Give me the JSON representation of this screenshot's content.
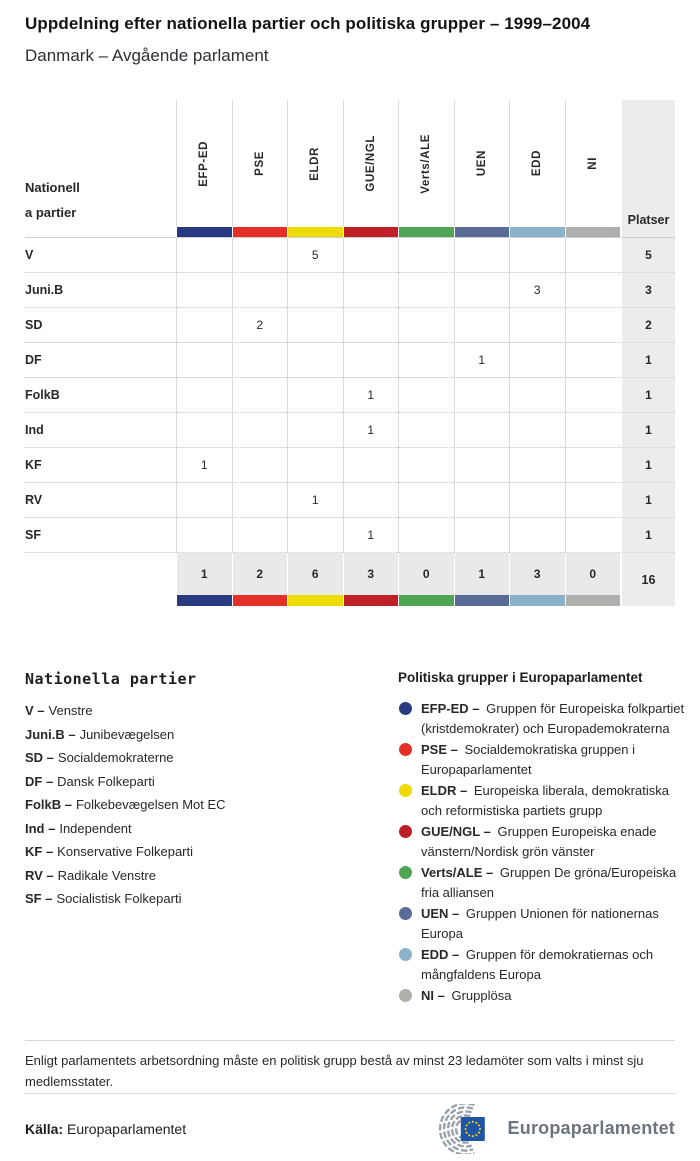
{
  "header": {
    "title": "Uppdelning efter nationella partier och politiska grupper – 1999–2004",
    "subtitle": "Danmark – Avgående parlament"
  },
  "chart_data": {
    "type": "table",
    "title": "Uppdelning efter nationella partier och politiska grupper – 1999–2004",
    "subtitle": "Danmark – Avgående parlament",
    "row_header": {
      "line1": "Nationell",
      "line2": "a partier"
    },
    "seats_column_label": "Platser",
    "groups": [
      {
        "id": "EFP-ED",
        "color": "#293a80"
      },
      {
        "id": "PSE",
        "color": "#e3312a"
      },
      {
        "id": "ELDR",
        "color": "#eedb00"
      },
      {
        "id": "GUE/NGL",
        "color": "#bd2026"
      },
      {
        "id": "Verts/ALE",
        "color": "#50a554"
      },
      {
        "id": "UEN",
        "color": "#5a6b97"
      },
      {
        "id": "EDD",
        "color": "#8bb2ca"
      },
      {
        "id": "NI",
        "color": "#b1afac"
      }
    ],
    "rows": [
      {
        "party": "V",
        "seats": [
          null,
          null,
          5,
          null,
          null,
          null,
          null,
          null
        ],
        "total": 5
      },
      {
        "party": "Juni.B",
        "seats": [
          null,
          null,
          null,
          null,
          null,
          null,
          3,
          null
        ],
        "total": 3
      },
      {
        "party": "SD",
        "seats": [
          null,
          2,
          null,
          null,
          null,
          null,
          null,
          null
        ],
        "total": 2
      },
      {
        "party": "DF",
        "seats": [
          null,
          null,
          null,
          null,
          null,
          1,
          null,
          null
        ],
        "total": 1
      },
      {
        "party": "FolkB",
        "seats": [
          null,
          null,
          null,
          1,
          null,
          null,
          null,
          null
        ],
        "total": 1
      },
      {
        "party": "Ind",
        "seats": [
          null,
          null,
          null,
          1,
          null,
          null,
          null,
          null
        ],
        "total": 1
      },
      {
        "party": "KF",
        "seats": [
          1,
          null,
          null,
          null,
          null,
          null,
          null,
          null
        ],
        "total": 1
      },
      {
        "party": "RV",
        "seats": [
          null,
          null,
          1,
          null,
          null,
          null,
          null,
          null
        ],
        "total": 1
      },
      {
        "party": "SF",
        "seats": [
          null,
          null,
          null,
          1,
          null,
          null,
          null,
          null
        ],
        "total": 1
      }
    ],
    "totals": [
      1,
      2,
      6,
      3,
      0,
      1,
      3,
      0
    ],
    "grand_total": 16
  },
  "legend_national": {
    "heading": "Nationella partier",
    "separator": "–",
    "items": [
      {
        "abbr": "V",
        "name": "Venstre"
      },
      {
        "abbr": "Juni.B",
        "name": "Junibevægelsen"
      },
      {
        "abbr": "SD",
        "name": "Socialdemokraterne"
      },
      {
        "abbr": "DF",
        "name": "Dansk Folkeparti"
      },
      {
        "abbr": "FolkB",
        "name": "Folkebevægelsen Mot EC"
      },
      {
        "abbr": "Ind",
        "name": "Independent"
      },
      {
        "abbr": "KF",
        "name": "Konservative Folkeparti"
      },
      {
        "abbr": "RV",
        "name": "Radikale Venstre"
      },
      {
        "abbr": "SF",
        "name": "Socialistisk Folkeparti"
      }
    ]
  },
  "legend_groups": {
    "heading": "Politiska grupper i Europaparlamentet",
    "separator": "–",
    "items": [
      {
        "abbr": "EFP-ED",
        "desc": "Gruppen för Europeiska folkpartiet (kristdemokrater) och Europademokraterna"
      },
      {
        "abbr": "PSE",
        "desc": "Socialdemokratiska gruppen i Europaparlamentet"
      },
      {
        "abbr": "ELDR",
        "desc": "Europeiska liberala, demokratiska och reformistiska partiets grupp"
      },
      {
        "abbr": "GUE/NGL",
        "desc": "Gruppen Europeiska enade vänstern/Nordisk grön vänster"
      },
      {
        "abbr": "Verts/ALE",
        "desc": "Gruppen De gröna/Europeiska fria alliansen"
      },
      {
        "abbr": "UEN",
        "desc": "Gruppen Unionen för nationernas Europa"
      },
      {
        "abbr": "EDD",
        "desc": "Gruppen för demokratiernas och mångfaldens Europa"
      },
      {
        "abbr": "NI",
        "desc": "Grupplösa"
      }
    ]
  },
  "footnote": "Enligt parlamentets arbetsordning måste en politisk grupp bestå av minst 23 ledamöter som valts i minst sju medlemsstater.",
  "source": {
    "label": "Källa:",
    "value": "Europaparlamentet"
  },
  "logo": {
    "text": "Europaparlamentet"
  }
}
